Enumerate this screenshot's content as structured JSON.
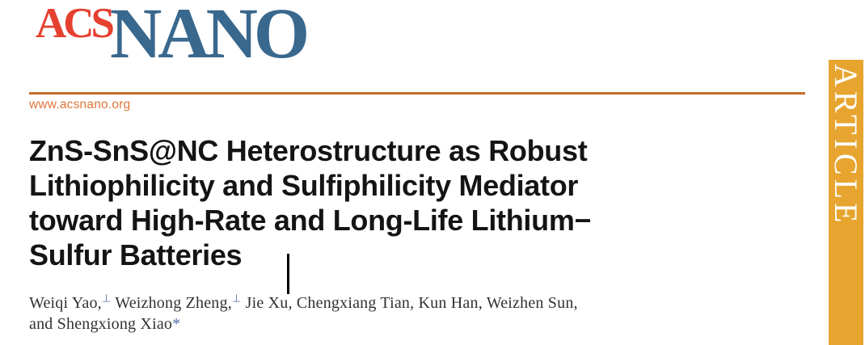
{
  "header": {
    "logo_acs": "ACS",
    "logo_nano": "NANO",
    "site_url": "www.acsnano.org"
  },
  "article_banner": {
    "label": "ARTICLE"
  },
  "title": {
    "lines": [
      "ZnS-SnS@NC Heterostructure as Robust",
      "Lithiophilicity and Sulfiphilicity Mediator",
      "toward High-Rate and Long-Life Lithium−",
      "Sulfur Batteries"
    ]
  },
  "authors": {
    "seg1": "Weiqi Yao,",
    "sup1": "⊥",
    "seg2": " Weizhong Zheng,",
    "sup2": "⊥",
    "seg3": " Jie Xu, Chengxiang Tian, Kun Han, Weizhen Sun,",
    "seg4": "and Shengxiong Xiao",
    "corresponding_mark": "*"
  },
  "colors": {
    "logo_red": "#E6402F",
    "logo_blue": "#39688E",
    "rule_orange": "#C66B28",
    "url_orange": "#E0763A",
    "banner_orange": "#E7A52F",
    "banner_text": "#FFFFFF",
    "title_text": "#141414",
    "author_text": "#323232",
    "author_mark_blue": "#5270A8"
  }
}
